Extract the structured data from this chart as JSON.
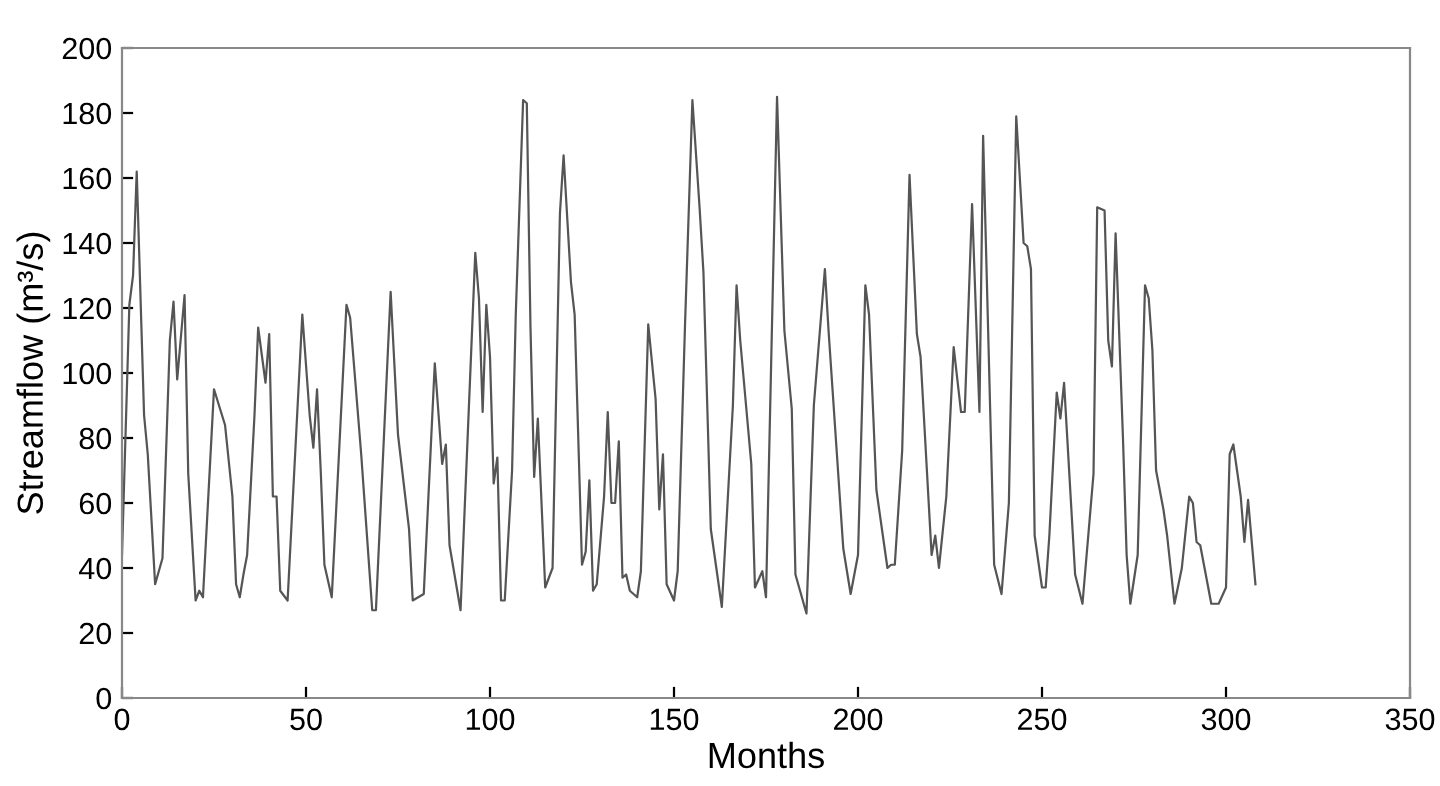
{
  "chart_data": {
    "type": "line",
    "xlabel": "Months",
    "ylabel": "Streamflow (m³/s)",
    "xlim": [
      0,
      350
    ],
    "xticks": [
      0,
      50,
      100,
      150,
      200,
      250,
      300,
      350
    ],
    "ylim": [
      0,
      200
    ],
    "yticks": [
      0,
      20,
      40,
      60,
      80,
      100,
      120,
      140,
      160,
      180,
      200
    ],
    "grid": false,
    "legend": false,
    "marker": "none",
    "line_style": "solid",
    "series": [
      {
        "color": "#555555",
        "x": [
          0,
          2,
          3,
          4,
          6,
          7,
          9,
          11,
          13,
          14,
          15,
          17,
          18,
          20,
          21,
          22,
          25,
          28,
          30,
          31,
          32,
          33,
          34,
          36,
          37,
          39,
          40,
          41,
          42,
          43,
          45,
          49,
          51,
          52,
          53,
          54,
          55,
          57,
          61,
          62,
          65,
          68,
          69,
          73,
          75,
          78,
          79,
          82,
          85,
          87,
          88,
          89,
          92,
          93,
          96,
          97,
          98,
          99,
          100,
          101,
          102,
          103,
          104,
          106,
          107,
          109,
          110,
          111,
          112,
          113,
          115,
          117,
          119,
          120,
          122,
          123,
          125,
          126,
          127,
          128,
          129,
          131,
          132,
          133,
          134,
          135,
          136,
          137,
          138,
          140,
          141,
          143,
          145,
          146,
          147,
          148,
          150,
          151,
          153,
          155,
          157,
          158,
          160,
          163,
          166,
          167,
          168,
          171,
          172,
          174,
          175,
          178,
          180,
          182,
          183,
          186,
          188,
          191,
          192,
          196,
          198,
          200,
          202,
          203,
          205,
          208,
          209,
          210,
          212,
          214,
          216,
          217,
          220,
          221,
          222,
          224,
          226,
          228,
          229,
          231,
          233,
          234,
          237,
          239,
          241,
          243,
          245,
          246,
          247,
          248,
          250,
          251,
          252,
          254,
          255,
          256,
          259,
          261,
          264,
          265,
          267,
          268,
          269,
          270,
          272,
          273,
          274,
          276,
          278,
          279,
          280,
          281,
          283,
          284,
          286,
          288,
          290,
          291,
          292,
          293,
          294,
          296,
          298,
          300,
          301,
          302,
          304,
          305,
          306,
          308
        ],
        "values": [
          44,
          121,
          130,
          162,
          87,
          75,
          35,
          43,
          110,
          122,
          98,
          124,
          69,
          30,
          33,
          31,
          95,
          84,
          62,
          35,
          31,
          38,
          44,
          87,
          114,
          97,
          112,
          62,
          62,
          33,
          30,
          118,
          87,
          77,
          95,
          70,
          41,
          31,
          121,
          117,
          75,
          27,
          27,
          125,
          81,
          52,
          30,
          32,
          103,
          72,
          78,
          47,
          27,
          55,
          137,
          123,
          88,
          121,
          105,
          66,
          74,
          30,
          30,
          70,
          118,
          184,
          183,
          114,
          68,
          86,
          34,
          40,
          149,
          167,
          128,
          118,
          41,
          45,
          67,
          33,
          35,
          62,
          88,
          60,
          60,
          79,
          37,
          38,
          33,
          31,
          39,
          115,
          92,
          58,
          75,
          35,
          30,
          39,
          115,
          184,
          150,
          131,
          52,
          28,
          90,
          127,
          110,
          72,
          34,
          39,
          31,
          185,
          113,
          89,
          38,
          26,
          90,
          132,
          113,
          46,
          32,
          44,
          127,
          118,
          64,
          40,
          41,
          41,
          76,
          161,
          112,
          105,
          44,
          50,
          40,
          62,
          108,
          88,
          88,
          152,
          88,
          173,
          41,
          32,
          60,
          179,
          140,
          139,
          132,
          50,
          34,
          34,
          50,
          94,
          86,
          97,
          38,
          29,
          69,
          151,
          150,
          110,
          102,
          143,
          80,
          44,
          29,
          44,
          127,
          123,
          107,
          70,
          58,
          50,
          29,
          40,
          62,
          60,
          48,
          47,
          41,
          29,
          29,
          34,
          75,
          78,
          62,
          48,
          61,
          35
        ]
      }
    ]
  }
}
